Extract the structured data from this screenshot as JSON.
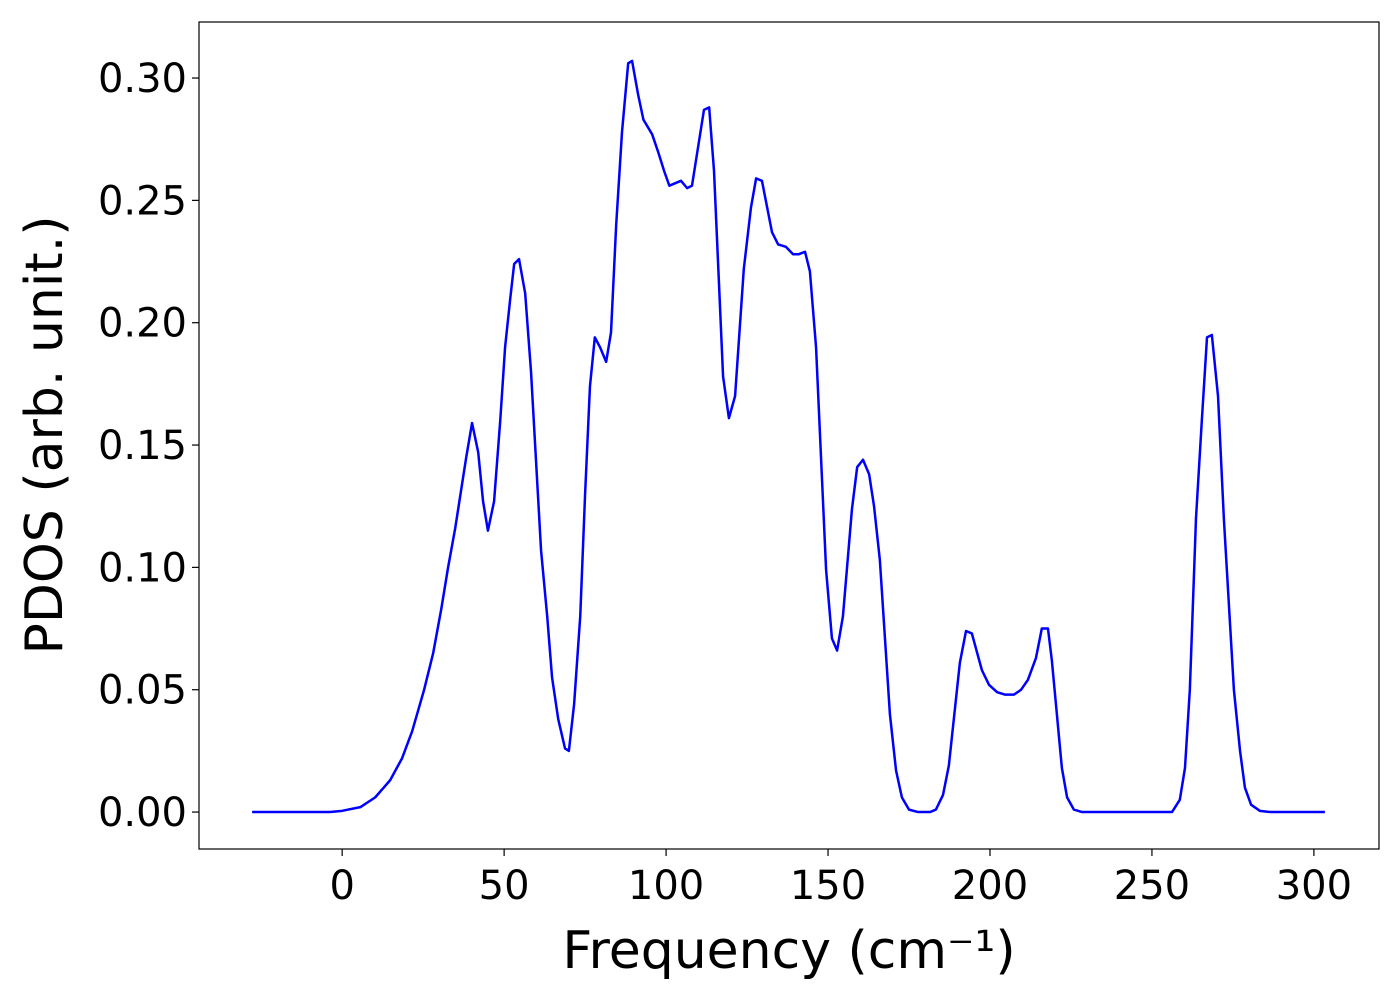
{
  "chart_data": {
    "type": "line",
    "xlabel": "Frequency (cm⁻¹)",
    "ylabel": "PDOS (arb. unit.)",
    "xlim": [
      -44.2,
      320.1
    ],
    "ylim": [
      -0.0151,
      0.3229
    ],
    "xticks": [
      0,
      50,
      100,
      150,
      200,
      250,
      300
    ],
    "yticks": [
      {
        "value": 0,
        "label": "0.00"
      },
      {
        "value": 0.05,
        "label": "0.05"
      },
      {
        "value": 0.1,
        "label": "0.10"
      },
      {
        "value": 0.15,
        "label": "0.15"
      },
      {
        "value": 0.2,
        "label": "0.20"
      },
      {
        "value": 0.25,
        "label": "0.25"
      },
      {
        "value": 0.3,
        "label": "0.30"
      }
    ],
    "grid": false,
    "x": [
      -27.8,
      -3.7,
      0,
      5.6,
      10.2,
      14.8,
      18.5,
      21.6,
      25.3,
      28.1,
      30.6,
      32.7,
      34.9,
      38.3,
      40.1,
      42,
      43.5,
      45,
      46.9,
      48.8,
      50.3,
      51.9,
      53.1,
      54.6,
      56.5,
      58.3,
      61.4,
      63.3,
      64.8,
      66.7,
      68.8,
      70,
      71.6,
      73.5,
      75,
      76.5,
      78,
      79.6,
      81.5,
      83,
      84.6,
      86.4,
      88.3,
      89.5,
      91.4,
      93,
      95.7,
      97.5,
      99.4,
      101,
      104.6,
      106.5,
      108,
      111.7,
      113.3,
      114.8,
      117.6,
      119.4,
      121.3,
      124,
      126.2,
      127.8,
      129.6,
      132.7,
      134.6,
      137,
      139.2,
      141,
      142.9,
      144.4,
      146.3,
      149.4,
      151.2,
      152.8,
      154.6,
      157.4,
      159,
      160.8,
      162.7,
      164.2,
      166,
      169.1,
      171,
      172.8,
      175,
      177.8,
      181.5,
      183.3,
      185.5,
      187.3,
      190.7,
      192.6,
      194.4,
      197.5,
      199.7,
      202.2,
      204.6,
      207.4,
      209.6,
      211.7,
      214.2,
      216,
      217.9,
      219.1,
      222.2,
      223.8,
      225.9,
      228.4,
      256.2,
      258.6,
      260.2,
      261.7,
      263.6,
      265.4,
      267,
      268.5,
      270.4,
      272.2,
      275.3,
      277.2,
      278.7,
      280.6,
      283.3,
      286.4,
      303.4
    ],
    "series": [
      {
        "color": "#0000ff",
        "values": [
          0,
          0,
          0.0005,
          0.002,
          0.006,
          0.013,
          0.022,
          0.033,
          0.05,
          0.065,
          0.083,
          0.1,
          0.116,
          0.145,
          0.159,
          0.147,
          0.127,
          0.115,
          0.127,
          0.16,
          0.19,
          0.21,
          0.224,
          0.226,
          0.212,
          0.18,
          0.107,
          0.08,
          0.055,
          0.038,
          0.026,
          0.025,
          0.044,
          0.08,
          0.13,
          0.174,
          0.194,
          0.19,
          0.184,
          0.196,
          0.24,
          0.278,
          0.306,
          0.307,
          0.293,
          0.283,
          0.277,
          0.27,
          0.262,
          0.256,
          0.258,
          0.255,
          0.256,
          0.287,
          0.288,
          0.262,
          0.178,
          0.161,
          0.17,
          0.222,
          0.247,
          0.259,
          0.258,
          0.237,
          0.232,
          0.231,
          0.228,
          0.228,
          0.229,
          0.221,
          0.19,
          0.099,
          0.071,
          0.066,
          0.08,
          0.124,
          0.141,
          0.144,
          0.138,
          0.125,
          0.103,
          0.04,
          0.017,
          0.006,
          0.001,
          0,
          0,
          0.001,
          0.007,
          0.019,
          0.061,
          0.074,
          0.073,
          0.058,
          0.052,
          0.049,
          0.048,
          0.048,
          0.05,
          0.054,
          0.063,
          0.075,
          0.075,
          0.062,
          0.018,
          0.006,
          0.001,
          0,
          0,
          0.005,
          0.018,
          0.05,
          0.12,
          0.16,
          0.194,
          0.195,
          0.17,
          0.12,
          0.05,
          0.025,
          0.01,
          0.003,
          0.0005,
          0,
          0
        ]
      }
    ]
  }
}
